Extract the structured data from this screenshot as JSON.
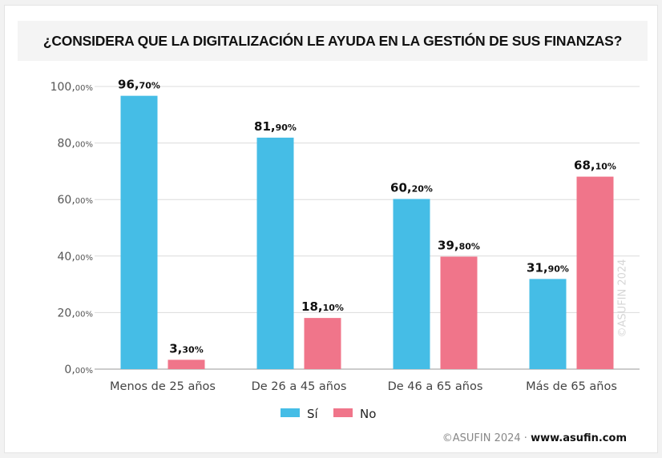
{
  "chart_data": {
    "type": "bar",
    "title": "¿CONSIDERA QUE LA DIGITALIZACIÓN LE AYUDA EN LA GESTIÓN DE SUS FINANZAS?",
    "categories": [
      "Menos de 25 años",
      "De 26 a 45 años",
      "De 46 a 65 años",
      "Más de 65 años"
    ],
    "series": [
      {
        "name": "Sí",
        "color": "#45bde6",
        "values": [
          96.7,
          81.9,
          60.2,
          31.9
        ],
        "labels": [
          "96,70%",
          "81,90%",
          "60,20%",
          "31,90%"
        ]
      },
      {
        "name": "No",
        "color": "#f0758a",
        "values": [
          3.3,
          18.1,
          39.8,
          68.1
        ],
        "labels": [
          "3,30%",
          "18,10%",
          "39,80%",
          "68,10%"
        ]
      }
    ],
    "yticks": [
      "0,00%",
      "20,00%",
      "40,00%",
      "60,00%",
      "80,00%",
      "100,00%"
    ],
    "ylim": [
      0,
      100
    ],
    "grid": true,
    "legend": "bottom"
  },
  "watermark": "©ASUFIN 2024",
  "footer": {
    "copyright": "©ASUFIN 2024 · ",
    "url": "www.asufin.com"
  }
}
